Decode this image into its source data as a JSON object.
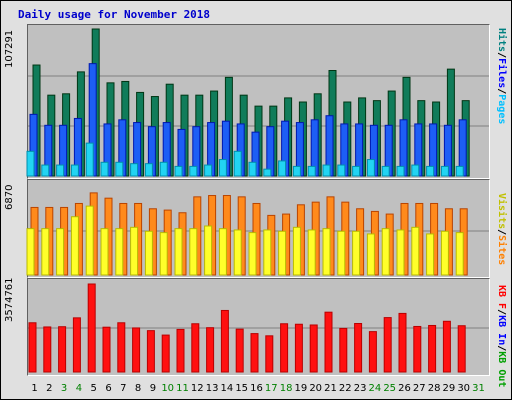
{
  "title": "Daily usage for November 2018",
  "colors": {
    "hits": "#107c5a",
    "files": "#1d5ef5",
    "pages": "#22d4f2",
    "visits": "#ffff2a",
    "sites": "#ff8a1c",
    "kbin": "#ff1010"
  },
  "y_max_labels": {
    "top": "107291",
    "middle": "6870",
    "bottom": "3574761"
  },
  "legend_top": [
    {
      "text": "Hits",
      "color": "#008080"
    },
    {
      "text": "/",
      "color": "#000000"
    },
    {
      "text": "Files",
      "color": "#0000ff"
    },
    {
      "text": "/",
      "color": "#000000"
    },
    {
      "text": "Pages",
      "color": "#00c0ff"
    }
  ],
  "legend_middle": [
    {
      "text": "Visits",
      "color": "#c0c000"
    },
    {
      "text": "/",
      "color": "#000000"
    },
    {
      "text": "Sites",
      "color": "#ff8000"
    }
  ],
  "legend_bottom": [
    {
      "text": "KB F",
      "color": "#ff0000"
    },
    {
      "text": "/",
      "color": "#000000"
    },
    {
      "text": "KB In",
      "color": "#0000ff"
    },
    {
      "text": "/",
      "color": "#000000"
    },
    {
      "text": "KB Out",
      "color": "#00a000"
    }
  ],
  "days": [
    "1",
    "2",
    "3",
    "4",
    "5",
    "6",
    "7",
    "8",
    "9",
    "10",
    "11",
    "12",
    "13",
    "14",
    "15",
    "16",
    "17",
    "18",
    "19",
    "20",
    "21",
    "22",
    "23",
    "24",
    "25",
    "26",
    "27",
    "28",
    "29",
    "30",
    "31"
  ],
  "weekend_days": [
    3,
    4,
    10,
    11,
    17,
    18,
    24,
    25,
    31
  ],
  "chart_data": {
    "type": "bar",
    "title": "Daily usage for November 2018",
    "categories": [
      "1",
      "2",
      "3",
      "4",
      "5",
      "6",
      "7",
      "8",
      "9",
      "10",
      "11",
      "12",
      "13",
      "14",
      "15",
      "16",
      "17",
      "18",
      "19",
      "20",
      "21",
      "22",
      "23",
      "24",
      "25",
      "26",
      "27",
      "28",
      "29",
      "30",
      "31"
    ],
    "panels": [
      {
        "name": "top",
        "ymax": 107291,
        "series": [
          {
            "name": "Hits",
            "values": [
              81000,
              59000,
              60000,
              76000,
              107291,
              68000,
              69000,
              61000,
              58000,
              67000,
              59000,
              59000,
              62000,
              72000,
              59000,
              51000,
              51000,
              57000,
              54000,
              60000,
              77000,
              54000,
              57000,
              55000,
              62000,
              72000,
              55000,
              54000,
              78000,
              55000,
              0
            ]
          },
          {
            "name": "Files",
            "values": [
              45000,
              37000,
              37000,
              42000,
              82000,
              38000,
              41000,
              39000,
              36000,
              39000,
              34000,
              36000,
              39000,
              40000,
              38000,
              32000,
              36000,
              40000,
              39000,
              41000,
              44000,
              38000,
              38000,
              37000,
              37000,
              41000,
              38000,
              38000,
              37000,
              41000,
              0
            ]
          },
          {
            "name": "Pages",
            "values": [
              18000,
              8000,
              8000,
              8000,
              24000,
              10000,
              10000,
              9000,
              9000,
              10000,
              7000,
              7000,
              8000,
              12000,
              18000,
              10000,
              5000,
              11000,
              7000,
              7000,
              8000,
              8000,
              7000,
              12000,
              7000,
              7000,
              8000,
              7000,
              7000,
              7000,
              0
            ]
          }
        ]
      },
      {
        "name": "middle",
        "ymax": 6870,
        "series": [
          {
            "name": "Sites",
            "values": [
              5100,
              5100,
              5100,
              5400,
              6200,
              5800,
              5400,
              5400,
              5000,
              4900,
              4700,
              5900,
              6000,
              6000,
              5900,
              5400,
              4500,
              4600,
              5300,
              5500,
              5900,
              5500,
              5000,
              4800,
              4600,
              5400,
              5400,
              5400,
              5000,
              5000,
              0
            ]
          },
          {
            "name": "Visits",
            "values": [
              3500,
              3500,
              3500,
              4400,
              5200,
              3500,
              3500,
              3600,
              3300,
              3200,
              3500,
              3500,
              3700,
              3500,
              3400,
              3200,
              3400,
              3300,
              3600,
              3400,
              3500,
              3300,
              3300,
              3100,
              3500,
              3400,
              3600,
              3100,
              3300,
              3200,
              0
            ]
          }
        ]
      },
      {
        "name": "bottom",
        "ymax": 3574761,
        "series": [
          {
            "name": "KB F",
            "values": [
              2000000,
              1830000,
              1840000,
              2200000,
              3574761,
              1820000,
              2000000,
              1790000,
              1680000,
              1500000,
              1730000,
              1960000,
              1800000,
              2500000,
              1740000,
              1560000,
              1470000,
              1960000,
              1940000,
              1910000,
              2430000,
              1770000,
              1970000,
              1640000,
              2210000,
              2380000,
              1850000,
              1890000,
              2060000,
              1880000,
              0
            ]
          }
        ]
      }
    ]
  }
}
